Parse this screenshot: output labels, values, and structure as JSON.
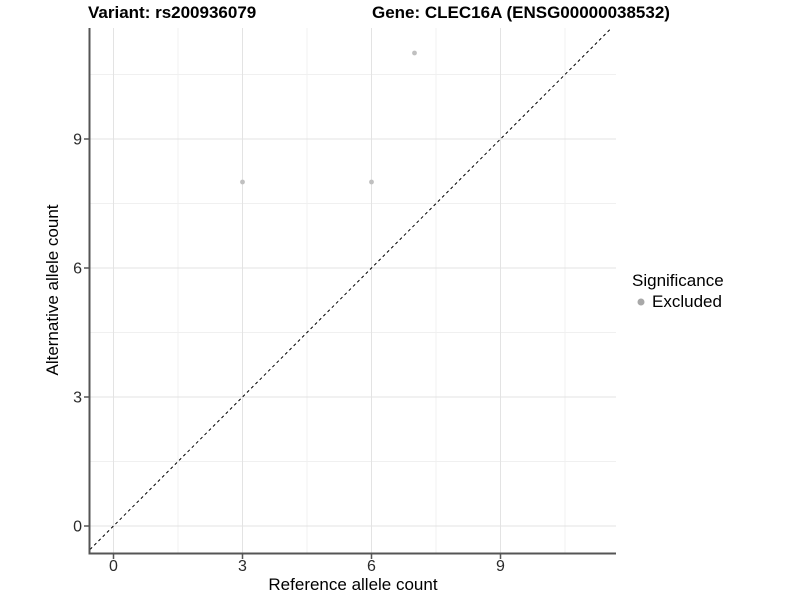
{
  "title": {
    "variant": "Variant: rs200936079",
    "gene": "Gene: CLEC16A (ENSG00000038532)"
  },
  "chart_data": {
    "type": "scatter",
    "xlabel": "Reference allele count",
    "ylabel": "Alternative allele count",
    "xlim": [
      -0.55,
      11.6
    ],
    "ylim": [
      -0.63,
      11.6
    ],
    "x_ticks": [
      0,
      3,
      6,
      9
    ],
    "y_ticks": [
      0,
      3,
      6,
      9
    ],
    "x_minor_ticks": [
      1.5,
      4.5,
      7.5,
      10.5
    ],
    "y_minor_ticks": [
      1.5,
      4.5,
      7.5,
      10.5
    ],
    "grid": true,
    "identity_line": {
      "slope": 1,
      "intercept": 0,
      "style": "dashed"
    },
    "series": [
      {
        "name": "Excluded",
        "points": [
          {
            "x": 3,
            "y": 8
          },
          {
            "x": 6,
            "y": 8
          },
          {
            "x": 7,
            "y": 11
          }
        ]
      }
    ],
    "legend": {
      "position": "right",
      "title": "Significance",
      "items": [
        {
          "label": "Excluded",
          "color": "#a8a8a8"
        }
      ]
    }
  },
  "colors": {
    "point": "#c0c0c0",
    "legend_dot": "#a8a8a8",
    "grid_major": "#e3e3e3",
    "grid_minor": "#f0f0f0",
    "axis_line": "#555555",
    "tick_mark": "#555555",
    "tick_label": "#2b2b2b",
    "identity_line": "#000000"
  }
}
